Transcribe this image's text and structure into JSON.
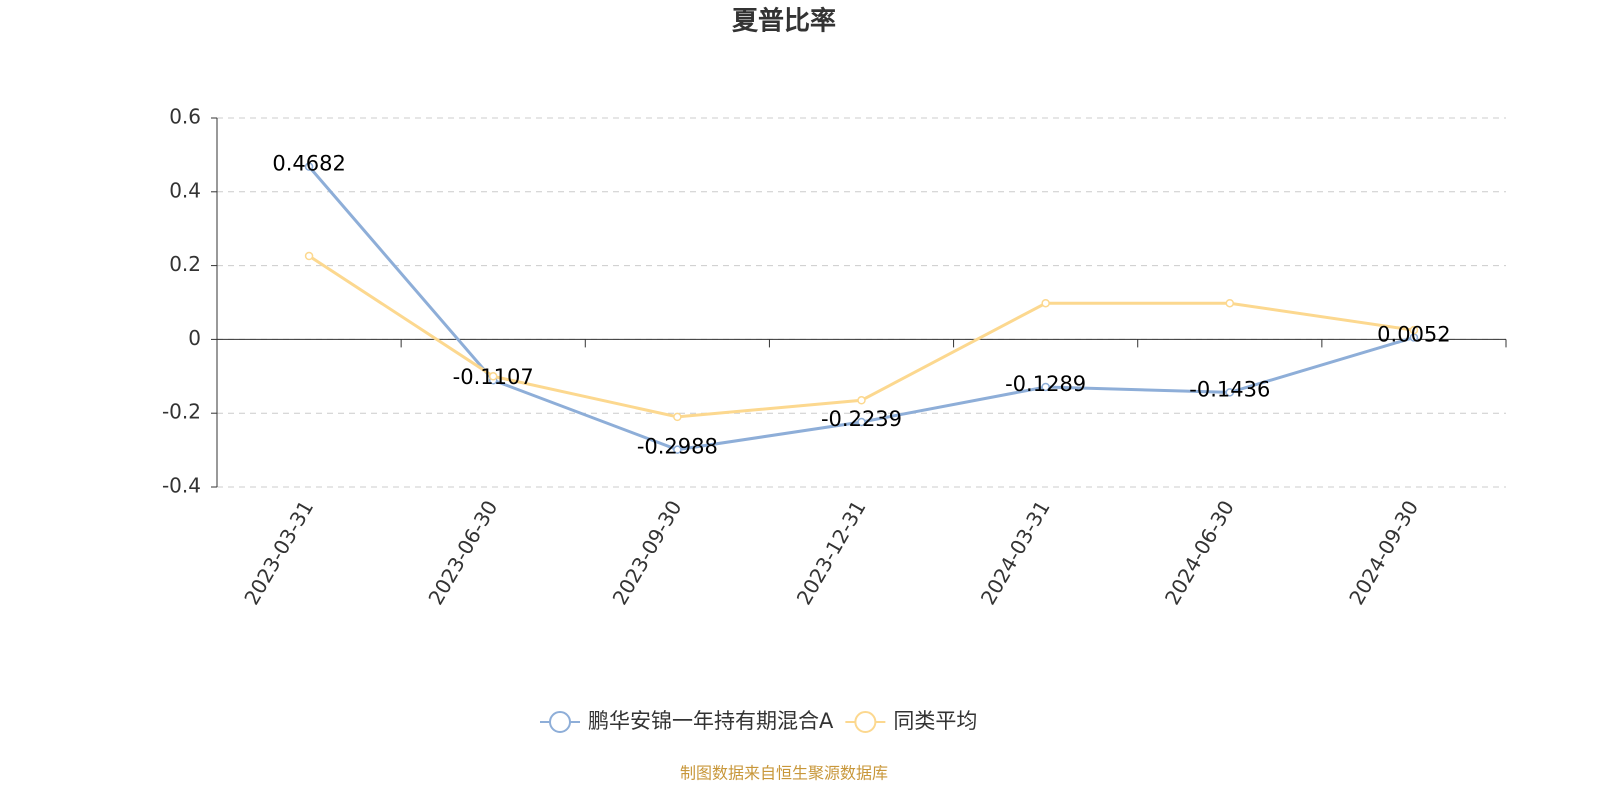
{
  "chart_data": {
    "type": "line",
    "title": "夏普比率",
    "categories": [
      "2023-03-31",
      "2023-06-30",
      "2023-09-30",
      "2023-12-31",
      "2024-03-31",
      "2024-06-30",
      "2024-09-30"
    ],
    "series": [
      {
        "name": "鹏华安锦一年持有期混合A",
        "color": "#8eaed8",
        "values": [
          0.4682,
          -0.1107,
          -0.2988,
          -0.2239,
          -0.1289,
          -0.1436,
          0.0052
        ],
        "labels": true
      },
      {
        "name": "同类平均",
        "color": "#fcd88f",
        "values": [
          0.226,
          -0.1,
          -0.21,
          -0.165,
          0.098,
          0.098,
          0.025
        ],
        "labels": false
      }
    ],
    "ylim": [
      -0.4,
      0.6
    ],
    "yticks": [
      -0.4,
      -0.2,
      0,
      0.2,
      0.4,
      0.6
    ],
    "grid": true,
    "legend": "bottom",
    "source": "制图数据来自恒生聚源数据库"
  }
}
